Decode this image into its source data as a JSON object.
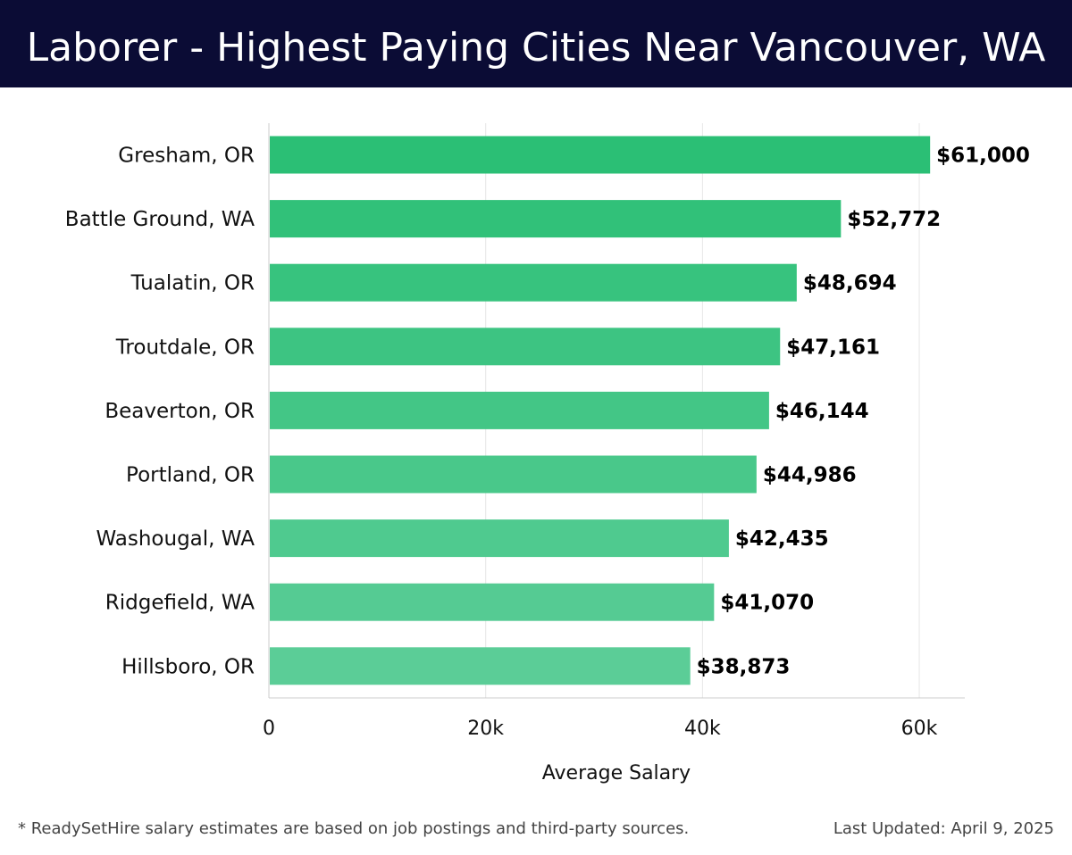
{
  "header": {
    "title": "Laborer - Highest Paying Cities Near Vancouver, WA"
  },
  "chart_data": {
    "type": "bar",
    "orientation": "horizontal",
    "title": "Laborer - Highest Paying Cities Near Vancouver, WA",
    "categories": [
      "Gresham, OR",
      "Battle Ground, WA",
      "Tualatin, OR",
      "Troutdale, OR",
      "Beaverton, OR",
      "Portland, OR",
      "Washougal, WA",
      "Ridgefield, WA",
      "Hillsboro, OR"
    ],
    "values": [
      61000,
      52772,
      48694,
      47161,
      46144,
      44986,
      42435,
      41070,
      38873
    ],
    "value_labels": [
      "$61,000",
      "$52,772",
      "$48,694",
      "$47,161",
      "$46,144",
      "$44,986",
      "$42,435",
      "$41,070",
      "$38,873"
    ],
    "xlabel": "Average Salary",
    "ylabel": "",
    "xlim": [
      0,
      64200
    ],
    "xticks": [
      0,
      20000,
      40000,
      60000
    ],
    "xtick_labels": [
      "0",
      "20k",
      "40k",
      "60k"
    ],
    "grid": "vertical",
    "colors": {
      "bar_top": "#2bbf75",
      "bar_bottom": "#5bcd97",
      "grid": "#e6e6e6",
      "axis": "#cccccc"
    }
  },
  "footer": {
    "note": "* ReadySetHire salary estimates are based on job postings and third-party sources.",
    "updated": "Last Updated: April 9, 2025"
  }
}
